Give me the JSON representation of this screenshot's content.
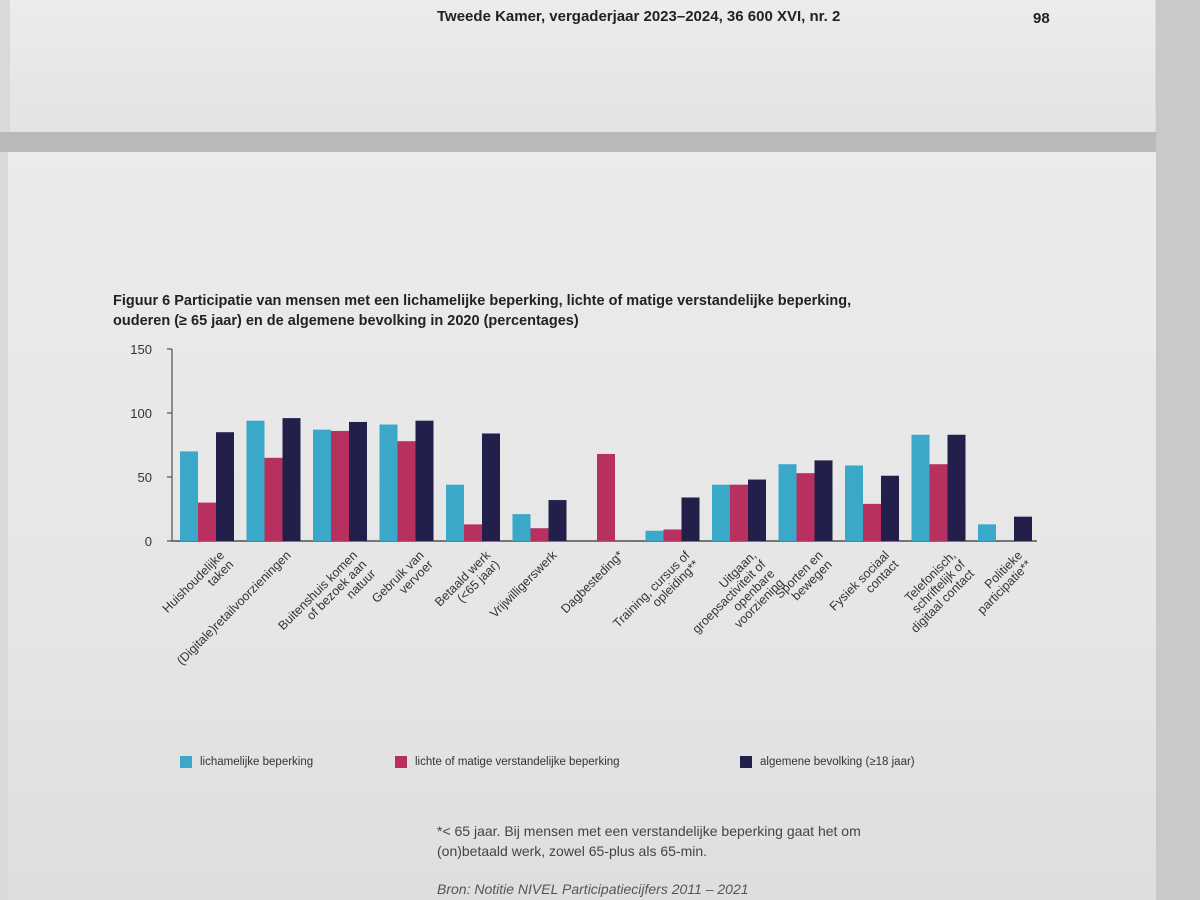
{
  "header": {
    "title": "Tweede Kamer, vergaderjaar 2023–2024, 36 600 XVI, nr. 2",
    "page_number": "98"
  },
  "figure": {
    "title_line1": "Figuur 6 Participatie van mensen met een lichamelijke beperking, lichte of matige verstandelijke beperking,",
    "title_line2": "ouderen (≥ 65 jaar) en de algemene bevolking in 2020 (percentages)",
    "footnote_line1": "*< 65 jaar. Bij mensen met een verstandelijke beperking gaat het om",
    "footnote_line2": "(on)betaald werk, zowel 65-plus als 65-min.",
    "source": "Bron: Notitie NIVEL Participatiecijfers 2011 – 2021"
  },
  "colors": {
    "lichamelijk": "#3aa8c8",
    "verstandelijk": "#b8305f",
    "algemeen": "#22204a"
  },
  "chart_data": {
    "type": "bar",
    "title": "Figuur 6 Participatie van mensen met een lichamelijke beperking, lichte of matige verstandelijke beperking, ouderen (≥ 65 jaar) en de algemene bevolking in 2020 (percentages)",
    "ylim": [
      0,
      150
    ],
    "yticks": [
      "0",
      "50",
      "100",
      "150"
    ],
    "ytick_values": [
      0,
      50,
      100,
      150
    ],
    "grid": false,
    "legend_position": "bottom",
    "categories": [
      [
        "Huishoudelijke",
        "taken"
      ],
      [
        "(Digitale)retailvoorzieningen"
      ],
      [
        "Buitenshuis komen",
        "of bezoek aan",
        "natuur"
      ],
      [
        "Gebruik van",
        "vervoer"
      ],
      [
        "Betaald werk",
        "(<65 jaar)"
      ],
      [
        "Vrijwilligerswerk"
      ],
      [
        "Dagbesteding*"
      ],
      [
        "Training, cursus of",
        "opleiding**"
      ],
      [
        "Uitgaan,",
        "groepsactiviteit of",
        "openbare",
        "voorziening"
      ],
      [
        "Sporten en",
        "bewegen"
      ],
      [
        "Fysiek sociaal",
        "contact"
      ],
      [
        "Telefonisch,",
        "schriftelijk of",
        "digitaal contact"
      ],
      [
        "Politieke",
        "participatie**"
      ]
    ],
    "series": [
      {
        "name": "lichamelijke beperking",
        "values": [
          70,
          94,
          87,
          91,
          44,
          21,
          null,
          8,
          44,
          60,
          59,
          83,
          13
        ]
      },
      {
        "name": "lichte of matige verstandelijke beperking",
        "values": [
          30,
          65,
          86,
          78,
          13,
          10,
          68,
          9,
          44,
          53,
          29,
          60,
          null
        ]
      },
      {
        "name": "algemene bevolking (≥18 jaar)",
        "values": [
          85,
          96,
          93,
          94,
          84,
          32,
          null,
          34,
          48,
          63,
          51,
          83,
          19
        ]
      }
    ]
  }
}
